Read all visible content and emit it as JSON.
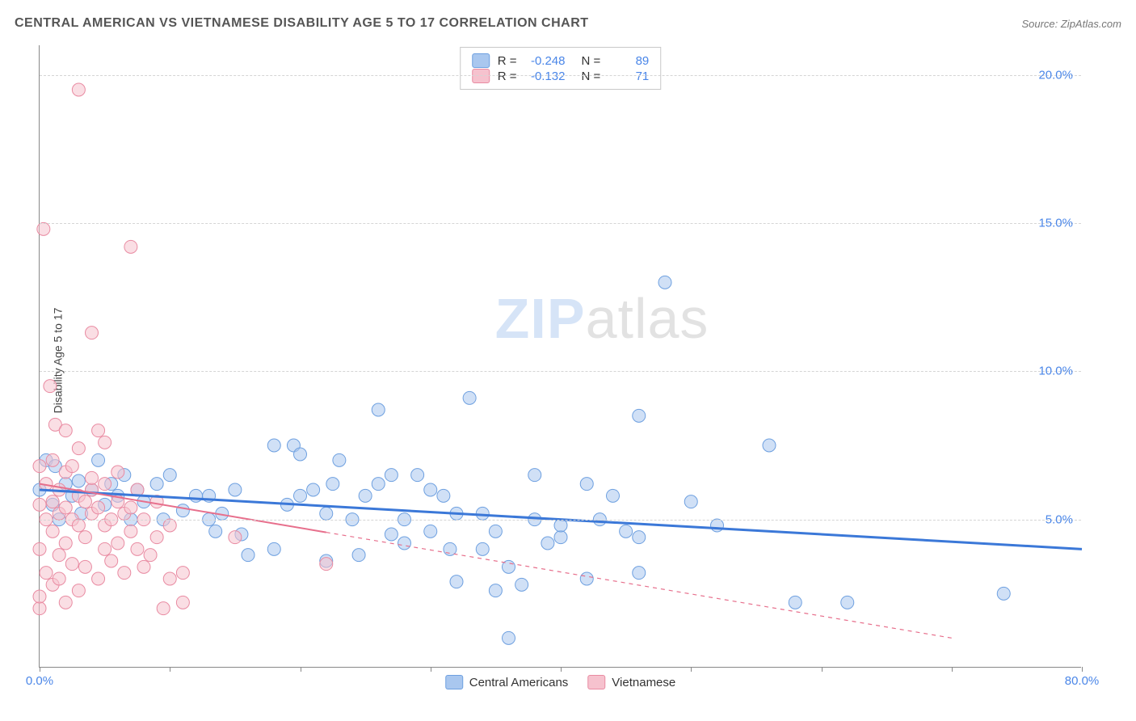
{
  "header": {
    "title": "CENTRAL AMERICAN VS VIETNAMESE DISABILITY AGE 5 TO 17 CORRELATION CHART",
    "source_prefix": "Source: ",
    "source_name": "ZipAtlas.com"
  },
  "watermark": {
    "zip": "ZIP",
    "atlas": "atlas"
  },
  "chart": {
    "type": "scatter",
    "ylabel": "Disability Age 5 to 17",
    "xlim": [
      0,
      80
    ],
    "ylim": [
      0,
      21
    ],
    "x_ticks": [
      0,
      10,
      20,
      30,
      40,
      50,
      60,
      70,
      80
    ],
    "x_tick_labels": {
      "0": "0.0%",
      "80": "80.0%"
    },
    "y_ticks": [
      5,
      10,
      15,
      20
    ],
    "y_tick_labels": {
      "5": "5.0%",
      "10": "10.0%",
      "15": "15.0%",
      "20": "20.0%"
    },
    "background_color": "#ffffff",
    "grid_color": "#d5d5d5",
    "axis_color": "#888888",
    "tick_label_color": "#4a86e8",
    "marker_radius": 8,
    "marker_opacity": 0.55,
    "series": [
      {
        "id": "central_americans",
        "label": "Central Americans",
        "fill_color": "#a9c7ef",
        "stroke_color": "#6ea0e0",
        "trend_color": "#3b78d8",
        "trend_width": 3,
        "trend_dash": "none",
        "R": "-0.248",
        "N": "89",
        "trend": {
          "x1": 0,
          "y1": 6.0,
          "x2": 80,
          "y2": 4.0,
          "solid_to_x": 80
        },
        "points": [
          [
            0,
            6.0
          ],
          [
            0.5,
            7.0
          ],
          [
            1,
            5.5
          ],
          [
            1.2,
            6.8
          ],
          [
            1.5,
            5.0
          ],
          [
            2,
            6.2
          ],
          [
            2.5,
            5.8
          ],
          [
            3,
            6.3
          ],
          [
            3.2,
            5.2
          ],
          [
            4,
            6.0
          ],
          [
            4.5,
            7.0
          ],
          [
            5,
            5.5
          ],
          [
            5.5,
            6.2
          ],
          [
            6,
            5.8
          ],
          [
            6.5,
            6.5
          ],
          [
            7,
            5.0
          ],
          [
            7.5,
            6.0
          ],
          [
            8,
            5.6
          ],
          [
            9,
            6.2
          ],
          [
            9.5,
            5.0
          ],
          [
            10,
            6.5
          ],
          [
            11,
            5.3
          ],
          [
            12,
            5.8
          ],
          [
            13,
            5.0
          ],
          [
            13,
            5.8
          ],
          [
            13.5,
            4.6
          ],
          [
            14,
            5.2
          ],
          [
            15,
            6.0
          ],
          [
            15.5,
            4.5
          ],
          [
            16,
            3.8
          ],
          [
            18,
            4.0
          ],
          [
            18,
            7.5
          ],
          [
            19,
            5.5
          ],
          [
            19.5,
            7.5
          ],
          [
            20,
            5.8
          ],
          [
            20,
            7.2
          ],
          [
            21,
            6.0
          ],
          [
            22,
            3.6
          ],
          [
            22,
            5.2
          ],
          [
            22.5,
            6.2
          ],
          [
            23,
            7.0
          ],
          [
            24,
            5.0
          ],
          [
            24.5,
            3.8
          ],
          [
            25,
            5.8
          ],
          [
            26,
            6.2
          ],
          [
            26,
            8.7
          ],
          [
            27,
            4.5
          ],
          [
            27,
            6.5
          ],
          [
            28,
            4.2
          ],
          [
            28,
            5.0
          ],
          [
            29,
            6.5
          ],
          [
            30,
            4.6
          ],
          [
            30,
            6.0
          ],
          [
            31,
            5.8
          ],
          [
            31.5,
            4.0
          ],
          [
            32,
            2.9
          ],
          [
            32,
            5.2
          ],
          [
            33,
            9.1
          ],
          [
            34,
            4.0
          ],
          [
            34,
            5.2
          ],
          [
            35,
            2.6
          ],
          [
            35,
            4.6
          ],
          [
            36,
            3.4
          ],
          [
            36,
            1.0
          ],
          [
            37,
            2.8
          ],
          [
            38,
            5.0
          ],
          [
            38,
            6.5
          ],
          [
            39,
            4.2
          ],
          [
            40,
            4.4
          ],
          [
            40,
            4.8
          ],
          [
            42,
            3.0
          ],
          [
            42,
            6.2
          ],
          [
            43,
            5.0
          ],
          [
            44,
            5.8
          ],
          [
            45,
            4.6
          ],
          [
            46,
            3.2
          ],
          [
            46,
            4.4
          ],
          [
            46,
            8.5
          ],
          [
            48,
            13.0
          ],
          [
            50,
            5.6
          ],
          [
            52,
            4.8
          ],
          [
            56,
            7.5
          ],
          [
            58,
            2.2
          ],
          [
            62,
            2.2
          ],
          [
            74,
            2.5
          ]
        ]
      },
      {
        "id": "vietnamese",
        "label": "Vietnamese",
        "fill_color": "#f6c2ce",
        "stroke_color": "#e98ba2",
        "trend_color": "#e76f8c",
        "trend_width": 2,
        "trend_dash": "5,5",
        "R": "-0.132",
        "N": "71",
        "trend": {
          "x1": 0,
          "y1": 6.2,
          "x2": 70,
          "y2": 1.0,
          "solid_to_x": 22
        },
        "points": [
          [
            0,
            2.0
          ],
          [
            0,
            2.4
          ],
          [
            0,
            4.0
          ],
          [
            0,
            5.5
          ],
          [
            0,
            6.8
          ],
          [
            0.3,
            14.8
          ],
          [
            0.5,
            3.2
          ],
          [
            0.5,
            5.0
          ],
          [
            0.5,
            6.2
          ],
          [
            0.8,
            9.5
          ],
          [
            1,
            2.8
          ],
          [
            1,
            4.6
          ],
          [
            1,
            5.6
          ],
          [
            1,
            7.0
          ],
          [
            1.2,
            8.2
          ],
          [
            1.5,
            3.0
          ],
          [
            1.5,
            3.8
          ],
          [
            1.5,
            5.2
          ],
          [
            1.5,
            6.0
          ],
          [
            2,
            2.2
          ],
          [
            2,
            4.2
          ],
          [
            2,
            5.4
          ],
          [
            2,
            6.6
          ],
          [
            2,
            8.0
          ],
          [
            2.5,
            3.5
          ],
          [
            2.5,
            5.0
          ],
          [
            2.5,
            6.8
          ],
          [
            3,
            19.5
          ],
          [
            3,
            2.6
          ],
          [
            3,
            4.8
          ],
          [
            3,
            5.8
          ],
          [
            3,
            7.4
          ],
          [
            3.5,
            3.4
          ],
          [
            3.5,
            4.4
          ],
          [
            3.5,
            5.6
          ],
          [
            4,
            11.3
          ],
          [
            4,
            5.2
          ],
          [
            4,
            6.0
          ],
          [
            4,
            6.4
          ],
          [
            4.5,
            3.0
          ],
          [
            4.5,
            5.4
          ],
          [
            4.5,
            8.0
          ],
          [
            5,
            4.0
          ],
          [
            5,
            4.8
          ],
          [
            5,
            6.2
          ],
          [
            5,
            7.6
          ],
          [
            5.5,
            3.6
          ],
          [
            5.5,
            5.0
          ],
          [
            6,
            4.2
          ],
          [
            6,
            5.6
          ],
          [
            6,
            6.6
          ],
          [
            6.5,
            3.2
          ],
          [
            6.5,
            5.2
          ],
          [
            7,
            4.6
          ],
          [
            7,
            5.4
          ],
          [
            7,
            14.2
          ],
          [
            7.5,
            4.0
          ],
          [
            7.5,
            6.0
          ],
          [
            8,
            3.4
          ],
          [
            8,
            5.0
          ],
          [
            8.5,
            3.8
          ],
          [
            9,
            4.4
          ],
          [
            9,
            5.6
          ],
          [
            9.5,
            2.0
          ],
          [
            10,
            3.0
          ],
          [
            10,
            4.8
          ],
          [
            11,
            3.2
          ],
          [
            11,
            2.2
          ],
          [
            15,
            4.4
          ],
          [
            22,
            3.5
          ]
        ]
      }
    ]
  },
  "stats_box": {
    "rows": [
      {
        "swatch_fill": "#a9c7ef",
        "swatch_stroke": "#6ea0e0",
        "r_label": "R =",
        "r_val": "-0.248",
        "n_label": "N =",
        "n_val": "89"
      },
      {
        "swatch_fill": "#f6c2ce",
        "swatch_stroke": "#e98ba2",
        "r_label": "R =",
        "r_val": "-0.132",
        "n_label": "N =",
        "n_val": "71"
      }
    ]
  },
  "bottom_legend": {
    "items": [
      {
        "swatch_fill": "#a9c7ef",
        "swatch_stroke": "#6ea0e0",
        "label": "Central Americans"
      },
      {
        "swatch_fill": "#f6c2ce",
        "swatch_stroke": "#e98ba2",
        "label": "Vietnamese"
      }
    ]
  }
}
